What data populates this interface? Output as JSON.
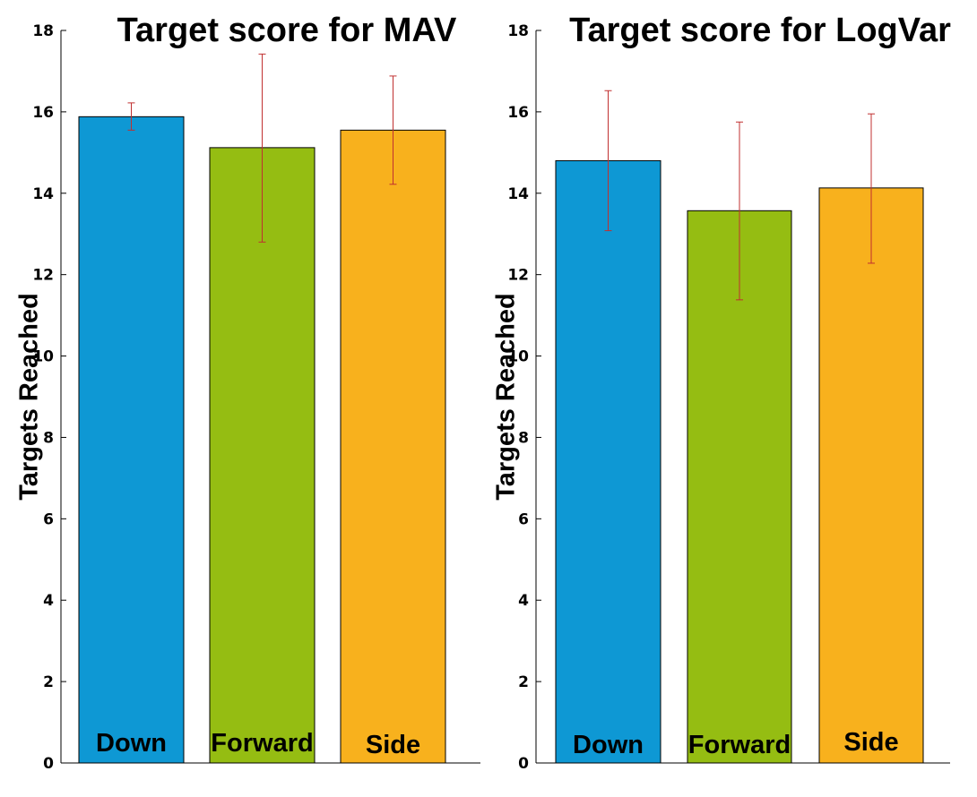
{
  "chart_data": [
    {
      "type": "bar",
      "title": "Target score for MAV",
      "xlabel": "",
      "ylabel": "Targets Reached",
      "ylim": [
        0,
        18
      ],
      "yticks": [
        0,
        2,
        4,
        6,
        8,
        10,
        12,
        14,
        16,
        18
      ],
      "categories": [
        "Down",
        "Forward",
        "Side"
      ],
      "values": [
        15.88,
        15.12,
        15.55
      ],
      "error_low": [
        15.55,
        12.8,
        14.22
      ],
      "error_high": [
        16.22,
        17.42,
        16.88
      ],
      "colors": [
        "#0e98d4",
        "#95bd12",
        "#f8b11d"
      ],
      "error_color": "#c03030",
      "grid": false
    },
    {
      "type": "bar",
      "title": "Target score for LogVar",
      "xlabel": "",
      "ylabel": "Targets Reached",
      "ylim": [
        0,
        18
      ],
      "yticks": [
        0,
        2,
        4,
        6,
        8,
        10,
        12,
        14,
        16,
        18
      ],
      "categories": [
        "Down",
        "Forward",
        "Side"
      ],
      "values": [
        14.8,
        13.57,
        14.13
      ],
      "error_low": [
        13.08,
        11.38,
        12.28
      ],
      "error_high": [
        16.52,
        15.75,
        15.95
      ],
      "colors": [
        "#0e98d4",
        "#95bd12",
        "#f8b11d"
      ],
      "error_color": "#c03030",
      "grid": false
    }
  ]
}
